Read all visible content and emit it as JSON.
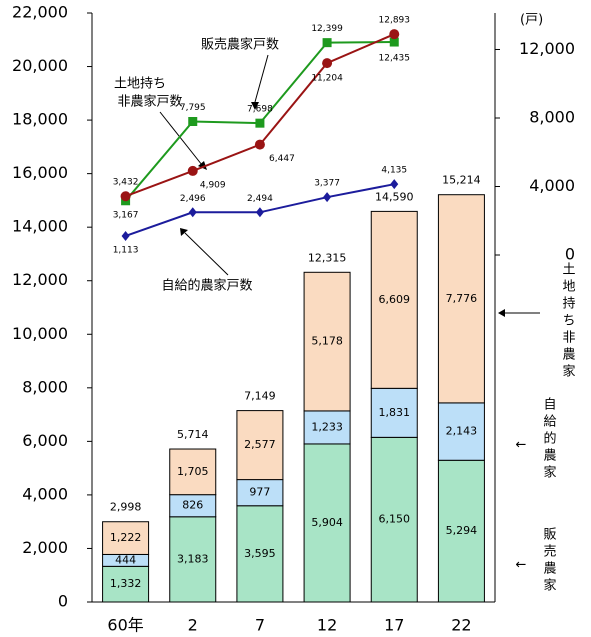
{
  "chart_data": {
    "type": "bar",
    "stacked": true,
    "categories": [
      "60年",
      "2",
      "7",
      "12",
      "17",
      "22"
    ],
    "series": [
      {
        "name": "販売農家",
        "color": "#a8e4c6",
        "values": [
          1332,
          3183,
          3595,
          5904,
          6150,
          5294
        ],
        "value_labels": [
          "1,332",
          "3,183",
          "3,595",
          "5,904",
          "6,150",
          "5,294"
        ]
      },
      {
        "name": "自給的農家",
        "color": "#bcdff8",
        "values": [
          444,
          826,
          977,
          1233,
          1831,
          2143
        ],
        "value_labels": [
          "444",
          "826",
          "977",
          "1,233",
          "1,831",
          "2,143"
        ]
      },
      {
        "name": "土地持ち非農家",
        "color": "#fadbc1",
        "values": [
          1222,
          1705,
          2577,
          5178,
          6609,
          7776
        ],
        "value_labels": [
          "1,222",
          "1,705",
          "2,577",
          "5,178",
          "6,609",
          "7,776"
        ]
      }
    ],
    "totals": [
      2998,
      5714,
      7149,
      12315,
      14590,
      15214
    ],
    "total_labels": [
      "2,998",
      "5,714",
      "7,149",
      "12,315",
      "14,590",
      "15,214"
    ],
    "ylim": [
      0,
      22000
    ],
    "yticks": [
      0,
      {
        "value": 2000,
        "label": "2,000"
      },
      {
        "value": 4000,
        "label": "4,000"
      },
      {
        "value": 6000,
        "label": "6,000"
      },
      {
        "value": 8000,
        "label": "8,000"
      },
      {
        "value": 10000,
        "label": "10,000"
      },
      {
        "value": 12000,
        "label": "12,000"
      },
      {
        "value": 14000,
        "label": "14,000"
      },
      {
        "value": 16000,
        "label": "16,000"
      },
      {
        "value": 18000,
        "label": "18,000"
      },
      {
        "value": 20000,
        "label": "20,000"
      },
      {
        "value": 22000,
        "label": "22,000"
      }
    ],
    "y2lim": [
      -20260,
      14130
    ],
    "y2ticks": [
      0,
      {
        "value": 4000,
        "label": "4,000"
      },
      {
        "value": 8000,
        "label": "8,000"
      },
      {
        "value": 12000,
        "label": "12,000"
      }
    ],
    "y2_unit": "(戸)",
    "lines": [
      {
        "type": "line",
        "axis": "y2",
        "marker": "square",
        "color": "#1e9a1e",
        "values": [
          3167,
          7795,
          7698,
          12399,
          12435,
          null
        ],
        "value_labels": [
          "3,167",
          "7,795",
          "7,698",
          "12,399",
          "12,435",
          null
        ]
      },
      {
        "type": "line",
        "axis": "y2",
        "marker": "circle",
        "color": "#9a1414",
        "values": [
          3432,
          4909,
          6447,
          11204,
          12893,
          null
        ],
        "value_labels": [
          "3,432",
          "4,909",
          "6,447",
          "11,204",
          "12,893",
          null
        ]
      },
      {
        "type": "line",
        "axis": "y2",
        "marker": "diamond",
        "color": "#1c1c9c",
        "values": [
          1113,
          2496,
          2494,
          3377,
          4135,
          null
        ],
        "value_labels": [
          "1,113",
          "2,496",
          "2,494",
          "3,377",
          "4,135",
          null
        ]
      }
    ],
    "annotations": [
      [
        "販売農家戸数"
      ],
      [
        "土地持ち",
        "非農家戸数"
      ],
      [
        "自給的農家戸数"
      ]
    ]
  }
}
